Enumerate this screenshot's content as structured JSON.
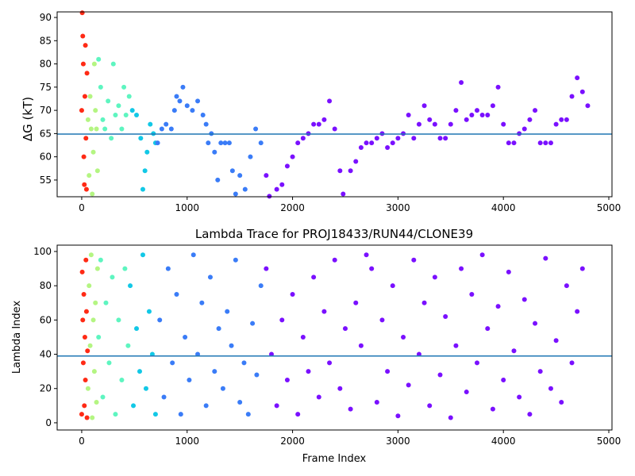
{
  "chart_data": [
    {
      "type": "scatter",
      "y_label": "ΔG (kT)",
      "xlim": [
        -233,
        5030
      ],
      "xticks": [
        0,
        1000,
        2000,
        3000,
        4000,
        5000
      ],
      "ylim": [
        51.4,
        91.2
      ],
      "yticks": [
        55,
        60,
        65,
        70,
        75,
        80,
        85,
        90
      ],
      "hline": 64.9,
      "hline_color": "#1f77b4",
      "series": [
        {
          "color": "#ff2a15",
          "x": [
            0,
            5,
            10,
            15,
            20,
            25,
            30,
            35,
            40,
            45,
            50
          ],
          "values": [
            70,
            91,
            86,
            80,
            60,
            54,
            73,
            84,
            64,
            53,
            78
          ]
        },
        {
          "color": "#b4f582",
          "x": [
            60,
            70,
            80,
            90,
            100,
            110,
            120,
            130,
            140,
            150
          ],
          "values": [
            68,
            56,
            73,
            66,
            52,
            61,
            80,
            70,
            66,
            57
          ]
        },
        {
          "color": "#5ef5c0",
          "x": [
            160,
            180,
            200,
            220,
            250,
            280,
            300,
            320,
            350,
            380,
            400,
            420,
            450
          ],
          "values": [
            81,
            75,
            68,
            66,
            72,
            64,
            80,
            69,
            71,
            66,
            75,
            69,
            73
          ]
        },
        {
          "color": "#12c8e6",
          "x": [
            480,
            520,
            560,
            580,
            600,
            620,
            650,
            680,
            700
          ],
          "values": [
            70,
            69,
            64,
            53,
            57,
            61,
            67,
            65,
            63
          ]
        },
        {
          "color": "#3a7cf7",
          "x": [
            720,
            760,
            800,
            850,
            880,
            900,
            930,
            960,
            1000,
            1050,
            1100,
            1150,
            1180,
            1200,
            1230,
            1260,
            1290,
            1320,
            1360,
            1400,
            1430,
            1460,
            1500,
            1550,
            1600,
            1650,
            1700
          ],
          "values": [
            63,
            66,
            67,
            66,
            70,
            73,
            72,
            75,
            71,
            70,
            72,
            69,
            67,
            63,
            65,
            61,
            55,
            63,
            63,
            63,
            57,
            52,
            56,
            53,
            60,
            66,
            63
          ]
        },
        {
          "color": "#7a10ff",
          "x": [
            1750,
            1780,
            1850,
            1900,
            1950,
            2000,
            2050,
            2100,
            2150,
            2200,
            2250,
            2300,
            2350,
            2400,
            2450,
            2480,
            2550,
            2600,
            2650,
            2700,
            2750,
            2800,
            2850,
            2900,
            2950,
            3000,
            3050,
            3100,
            3150,
            3200,
            3250,
            3300,
            3350,
            3400,
            3450,
            3500,
            3550,
            3600,
            3650,
            3700,
            3750,
            3800,
            3850,
            3900,
            3950,
            4000,
            4050,
            4100,
            4150,
            4200,
            4250,
            4300,
            4350,
            4400,
            4450,
            4500,
            4550,
            4600,
            4650,
            4700,
            4750,
            4800
          ],
          "values": [
            56,
            51.5,
            53,
            54,
            58,
            60,
            63,
            64,
            65,
            67,
            67,
            68,
            72,
            66,
            57,
            52,
            57,
            59,
            62,
            63,
            63,
            64,
            65,
            62,
            63,
            64,
            65,
            69,
            64,
            67,
            71,
            68,
            67,
            64,
            64,
            67,
            70,
            76,
            68,
            69,
            70,
            69,
            69,
            71,
            75,
            67,
            63,
            63,
            65,
            66,
            68,
            70,
            63,
            63,
            63,
            67,
            68,
            68,
            73,
            77,
            74,
            71
          ]
        }
      ]
    },
    {
      "type": "scatter",
      "title": "Lambda Trace for PROJ18433/RUN44/CLONE39",
      "x_label": "Frame Index",
      "y_label": "Lambda Index",
      "xlim": [
        -233,
        5030
      ],
      "xticks": [
        0,
        1000,
        2000,
        3000,
        4000,
        5000
      ],
      "ylim": [
        -4.2,
        103.7
      ],
      "yticks": [
        0,
        20,
        40,
        60,
        80,
        100
      ],
      "hline": 39,
      "hline_color": "#1f77b4",
      "series": [
        {
          "color": "#ff2a15",
          "x": [
            0,
            5,
            10,
            15,
            20,
            25,
            30,
            35,
            40,
            45,
            50,
            55
          ],
          "values": [
            5,
            88,
            60,
            35,
            75,
            10,
            50,
            25,
            95,
            65,
            3,
            42
          ]
        },
        {
          "color": "#b4f582",
          "x": [
            60,
            70,
            80,
            90,
            100,
            110,
            120,
            130,
            140,
            150
          ],
          "values": [
            20,
            80,
            45,
            98,
            3,
            60,
            30,
            70,
            12,
            90
          ]
        },
        {
          "color": "#5ef5c0",
          "x": [
            160,
            180,
            200,
            230,
            260,
            290,
            320,
            350,
            380,
            410,
            440
          ],
          "values": [
            50,
            95,
            15,
            70,
            35,
            85,
            5,
            60,
            25,
            90,
            45
          ]
        },
        {
          "color": "#12c8e6",
          "x": [
            460,
            490,
            520,
            550,
            580,
            610,
            640,
            670,
            700
          ],
          "values": [
            80,
            10,
            55,
            30,
            98,
            20,
            65,
            40,
            5
          ]
        },
        {
          "color": "#3a7cf7",
          "x": [
            740,
            780,
            820,
            860,
            900,
            940,
            980,
            1020,
            1060,
            1100,
            1140,
            1180,
            1220,
            1260,
            1300,
            1340,
            1380,
            1420,
            1460,
            1500,
            1540,
            1580,
            1620,
            1660,
            1700
          ],
          "values": [
            60,
            15,
            90,
            35,
            75,
            5,
            50,
            25,
            98,
            40,
            70,
            10,
            85,
            30,
            55,
            20,
            65,
            45,
            95,
            12,
            35,
            5,
            58,
            28,
            80
          ]
        },
        {
          "color": "#7a10ff",
          "x": [
            1750,
            1800,
            1850,
            1900,
            1950,
            2000,
            2050,
            2100,
            2150,
            2200,
            2250,
            2300,
            2350,
            2400,
            2450,
            2500,
            2550,
            2600,
            2650,
            2700,
            2750,
            2800,
            2850,
            2900,
            2950,
            3000,
            3050,
            3100,
            3150,
            3200,
            3250,
            3300,
            3350,
            3400,
            3450,
            3500,
            3550,
            3600,
            3650,
            3700,
            3750,
            3800,
            3850,
            3900,
            3950,
            4000,
            4050,
            4100,
            4150,
            4200,
            4250,
            4300,
            4350,
            4400,
            4450,
            4500,
            4550,
            4600,
            4650,
            4700,
            4750
          ],
          "values": [
            90,
            40,
            10,
            60,
            25,
            75,
            5,
            50,
            30,
            85,
            15,
            65,
            35,
            95,
            20,
            55,
            8,
            70,
            45,
            98,
            90,
            12,
            60,
            30,
            80,
            4,
            50,
            22,
            95,
            40,
            70,
            10,
            85,
            28,
            62,
            3,
            45,
            90,
            18,
            75,
            35,
            98,
            55,
            8,
            68,
            25,
            88,
            42,
            15,
            72,
            5,
            58,
            30,
            96,
            20,
            48,
            12,
            80,
            35,
            65,
            90
          ]
        }
      ]
    }
  ]
}
